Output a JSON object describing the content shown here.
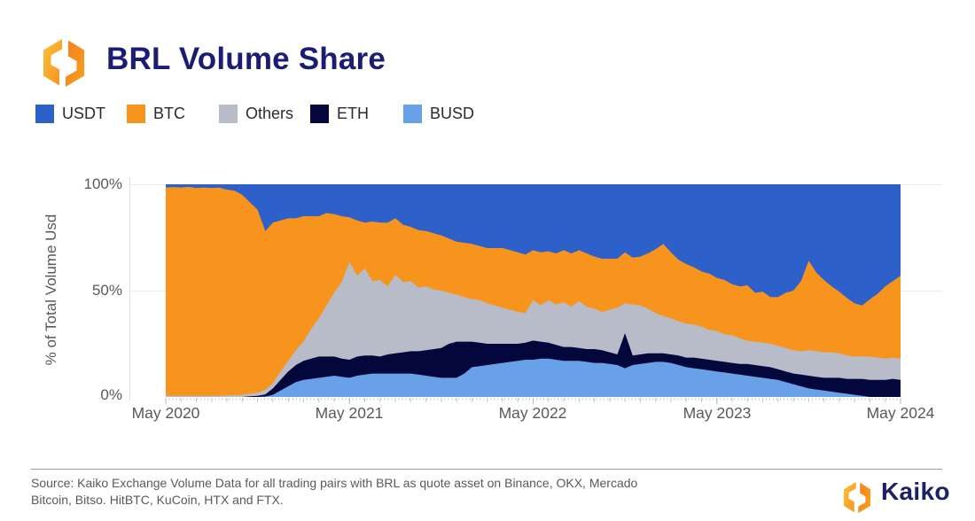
{
  "header": {
    "title": "BRL Volume Share"
  },
  "legend": {
    "items": [
      {
        "label": "USDT",
        "color": "#2d60c8"
      },
      {
        "label": "BTC",
        "color": "#f7941e"
      },
      {
        "label": "Others",
        "color": "#b7bcc8"
      },
      {
        "label": "ETH",
        "color": "#04073c"
      },
      {
        "label": "BUSD",
        "color": "#68a1e8"
      }
    ]
  },
  "chart_data": {
    "type": "area",
    "stacking": "percent",
    "title": "BRL Volume Share",
    "xlabel": "",
    "ylabel": "% of Total Volume Usd",
    "ylim": [
      0,
      100
    ],
    "grid": "horizontal gridlines at 50% and 100%",
    "legend_position": "top-left",
    "x_ticks": [
      "May 2020",
      "May 2021",
      "May 2022",
      "May 2023",
      "May 2024"
    ],
    "y_ticks": [
      "100%",
      "50%",
      "0%"
    ],
    "x_unit": "biweekly samples, May 2020 to May 2024, values are % share of total BRL volume",
    "series_bottom_to_top": [
      "BUSD",
      "ETH",
      "Others",
      "BTC",
      "USDT"
    ],
    "series": [
      {
        "name": "BUSD",
        "color": "#68a1e8",
        "values": [
          0,
          0,
          0,
          0,
          0,
          0,
          0,
          0,
          0,
          0,
          0,
          0,
          0,
          0.2,
          1,
          3,
          5,
          7,
          8,
          8.5,
          9,
          9.5,
          10,
          9.5,
          9,
          10,
          10.5,
          11,
          11,
          11,
          11,
          11,
          11,
          10.5,
          10,
          9.5,
          9,
          9,
          9,
          11,
          14,
          14.5,
          15,
          15.5,
          16,
          16.5,
          17,
          17.5,
          17.5,
          18,
          18,
          17.5,
          17,
          17,
          17,
          16.5,
          16,
          16,
          15.5,
          15,
          13.5,
          15,
          15.5,
          16,
          16.5,
          16.5,
          16,
          15,
          14,
          13.5,
          13,
          12.5,
          12,
          11.5,
          11,
          10.5,
          10,
          9.5,
          9,
          8.5,
          8,
          7,
          6,
          5,
          4,
          3.5,
          3,
          2.5,
          2,
          1.5,
          1,
          0.5,
          0,
          0,
          0,
          0,
          0
        ]
      },
      {
        "name": "ETH",
        "color": "#04073c",
        "values": [
          0,
          0,
          0,
          0,
          0,
          0,
          0,
          0,
          0,
          0,
          0,
          0.3,
          0.5,
          1,
          3,
          5,
          7,
          8,
          9,
          9.5,
          10,
          9.5,
          9,
          8.5,
          8.5,
          9,
          9,
          8.5,
          8,
          9,
          9.5,
          10,
          10.5,
          11,
          12,
          13,
          14,
          16,
          17,
          15,
          12,
          11,
          10,
          9.5,
          9,
          8.5,
          8,
          8,
          9,
          8,
          7.5,
          7,
          6.5,
          6.5,
          6,
          6,
          6.5,
          6,
          5.5,
          5,
          16.5,
          4.5,
          4.5,
          4.5,
          4,
          4,
          4,
          4.5,
          4.5,
          5,
          5,
          5,
          5,
          5,
          5,
          5,
          5.5,
          5.5,
          5.5,
          5.5,
          5,
          5,
          5,
          5.5,
          6,
          6,
          6,
          6.5,
          7,
          7,
          7.5,
          8,
          8,
          8,
          8,
          8.5,
          8
        ]
      },
      {
        "name": "Others",
        "color": "#b7bcc8",
        "values": [
          0.5,
          0.5,
          0.5,
          0.5,
          0.5,
          0.5,
          0.5,
          0.5,
          0.7,
          0.8,
          1,
          1.2,
          1.5,
          2,
          2.5,
          4,
          5,
          7,
          9,
          14,
          18,
          24,
          30,
          36,
          46,
          38,
          41,
          35,
          36,
          32,
          37,
          33,
          33,
          30,
          30,
          28,
          27,
          24,
          22,
          21,
          20,
          20,
          19,
          18,
          17,
          16,
          15,
          14,
          19,
          17,
          20,
          19,
          21,
          19,
          22,
          20,
          19,
          18,
          20,
          22,
          14,
          24,
          23,
          21,
          19,
          17.5,
          17,
          16,
          16,
          15.5,
          15,
          14,
          14,
          13,
          13,
          12,
          11,
          11,
          11,
          11,
          11,
          11,
          11,
          11,
          12,
          12,
          12,
          12,
          11.5,
          11,
          10.5,
          10.5,
          11,
          10.5,
          10,
          10,
          10
        ]
      },
      {
        "name": "BTC",
        "color": "#f7941e",
        "values": [
          98,
          98.2,
          98,
          98.3,
          97.8,
          98,
          97.7,
          97.9,
          96.8,
          96.2,
          94,
          90,
          86,
          74.8,
          75.5,
          71,
          67,
          62,
          59,
          53,
          48,
          43.5,
          37,
          31,
          21,
          26,
          21.5,
          28,
          27,
          30,
          26.5,
          27,
          25.5,
          27,
          26,
          26.5,
          26,
          25.5,
          25,
          25.5,
          26,
          25.5,
          26,
          27,
          28,
          28,
          28,
          27.5,
          23.5,
          25,
          23,
          24,
          24.5,
          25,
          24,
          25,
          24.5,
          25,
          24,
          23,
          24,
          22,
          23,
          26,
          30,
          34,
          31,
          29,
          28,
          27,
          26,
          26.5,
          25,
          25.5,
          24,
          24.5,
          26,
          23,
          24,
          22,
          23,
          26,
          28,
          33,
          42,
          37,
          34,
          31,
          29,
          27,
          25,
          24,
          27,
          30,
          34,
          36,
          39
        ]
      },
      {
        "name": "USDT",
        "color": "#2d60c8",
        "values": [
          1.5,
          1.3,
          1.5,
          1.2,
          1.7,
          1.5,
          1.8,
          1.6,
          2.5,
          3,
          5,
          8.5,
          12,
          22,
          18,
          17,
          16,
          16,
          15,
          15,
          15,
          13.5,
          14,
          15,
          15.5,
          17,
          18,
          17.5,
          18,
          18,
          16,
          19,
          20,
          21.5,
          22,
          23,
          24,
          25.5,
          27,
          27.5,
          28,
          29,
          30,
          30,
          30,
          31,
          32,
          33,
          31,
          32,
          31.5,
          32.5,
          31,
          32.5,
          31,
          32.5,
          34,
          35,
          35,
          35,
          32,
          34.5,
          34,
          32.5,
          30.5,
          28,
          32,
          35.5,
          37.5,
          39,
          41,
          42,
          44,
          45,
          47,
          48,
          47.5,
          51,
          50.5,
          53,
          53,
          51,
          50,
          45.5,
          36,
          41.5,
          45,
          48,
          50.5,
          53.5,
          56,
          57,
          54,
          51.5,
          48,
          45.5,
          43
        ]
      }
    ]
  },
  "footer": {
    "source_line1": "Source: Kaiko Exchange Volume Data for all trading pairs with BRL as quote asset on Binance, OKX, Mercado",
    "source_line2": "Bitcoin, Bitso. HitBTC, KuCoin, HTX and FTX.",
    "brand": "Kaiko"
  }
}
